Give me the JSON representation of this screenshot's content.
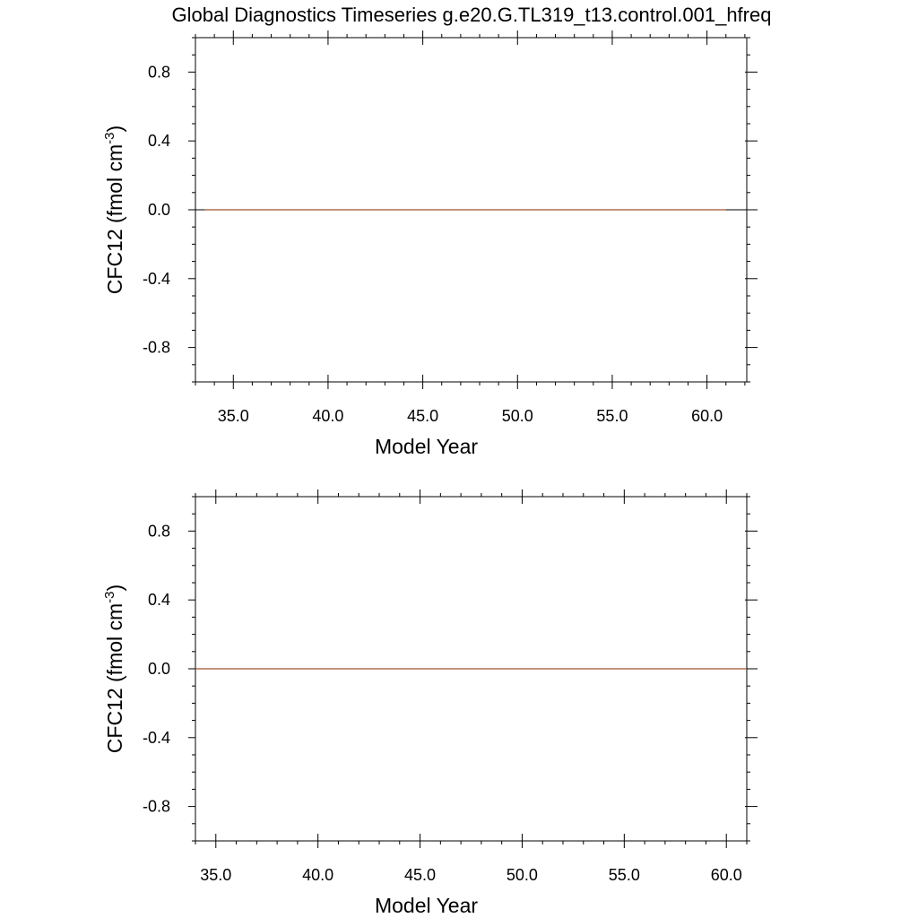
{
  "figure_title": "Global Diagnostics Timeseries g.e20.G.TL319_t13.control.001_hfreq",
  "chart_data": [
    {
      "type": "line",
      "xlabel": "Model Year",
      "ylabel_main": "CFC12 (fmol cm",
      "ylabel_sup": "-3",
      "ylabel_tail": ")",
      "xlim": [
        33.0,
        62.1
      ],
      "ylim": [
        -1.0,
        1.0
      ],
      "xticks": [
        35.0,
        40.0,
        45.0,
        50.0,
        55.0,
        60.0
      ],
      "xtick_labels": [
        "35.0",
        "40.0",
        "45.0",
        "50.0",
        "55.0",
        "60.0"
      ],
      "yticks": [
        0.8,
        0.4,
        0.0,
        -0.4,
        -0.8
      ],
      "ytick_labels": [
        "0.8",
        "0.4",
        "0.0",
        "-0.4",
        "-0.8"
      ],
      "grid": false,
      "reference_line": {
        "y": 0.0,
        "color": "#000000"
      },
      "series": [
        {
          "x": [
            33.5,
            61.0
          ],
          "y": [
            0.0,
            0.0
          ],
          "color": "#a0522d"
        }
      ]
    },
    {
      "type": "line",
      "xlabel": "Model Year",
      "ylabel_main": "CFC12 (fmol cm",
      "ylabel_sup": "-3",
      "ylabel_tail": ")",
      "xlim": [
        34.0,
        61.0
      ],
      "ylim": [
        -1.0,
        1.0
      ],
      "xticks": [
        35.0,
        40.0,
        45.0,
        50.0,
        55.0,
        60.0
      ],
      "xtick_labels": [
        "35.0",
        "40.0",
        "45.0",
        "50.0",
        "55.0",
        "60.0"
      ],
      "yticks": [
        0.8,
        0.4,
        0.0,
        -0.4,
        -0.8
      ],
      "ytick_labels": [
        "0.8",
        "0.4",
        "0.0",
        "-0.4",
        "-0.8"
      ],
      "grid": false,
      "reference_line": {
        "y": 0.0,
        "color": "#000000"
      },
      "series": [
        {
          "x": [
            34.0,
            61.0
          ],
          "y": [
            0.0,
            0.0
          ],
          "color": "#a0522d"
        }
      ]
    }
  ]
}
